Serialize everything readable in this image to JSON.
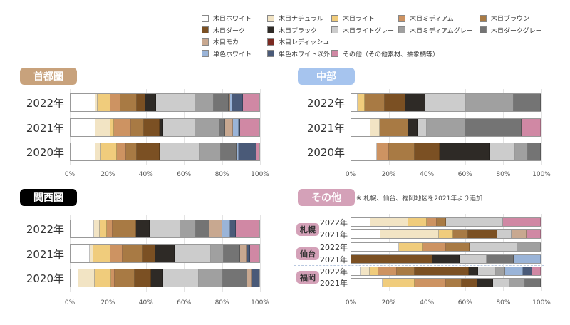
{
  "legend": [
    {
      "label": "木目ホワイト",
      "color": "#ffffff"
    },
    {
      "label": "木目ナチュラル",
      "color": "#f2e4c4"
    },
    {
      "label": "木目ライト",
      "color": "#f0cc7c"
    },
    {
      "label": "木目ミディアム",
      "color": "#cd9362"
    },
    {
      "label": "木目ブラウン",
      "color": "#a87a44"
    },
    {
      "label": "木目ダーク",
      "color": "#7b5023"
    },
    {
      "label": "木目ブラック",
      "color": "#2e2a26"
    },
    {
      "label": "木目ライトグレー",
      "color": "#cccccc"
    },
    {
      "label": "木目ミディアムグレー",
      "color": "#a0a0a0"
    },
    {
      "label": "木目ダークグレー",
      "color": "#747474"
    },
    {
      "label": "木目モカ",
      "color": "#c8a890"
    },
    {
      "label": "木目レディッシュ",
      "color": "#7b2a22"
    },
    {
      "label": "単色ホワイト",
      "color": "#9ab4d8"
    },
    {
      "label": "単色ホワイト以外",
      "color": "#4a5a78"
    },
    {
      "label": "その他（その他素材、抽象柄等）",
      "color": "#d088a4"
    }
  ],
  "chart_data": [
    {
      "type": "bar",
      "stacked": true,
      "orientation": "horizontal",
      "title": "首都圏",
      "badge_color": "#c8a27c",
      "xlim": [
        0,
        100
      ],
      "xticks": [
        "0%",
        "20%",
        "40%",
        "60%",
        "80%",
        "100%"
      ],
      "rows": [
        {
          "label": "2022年",
          "values": [
            13.2,
            1.1,
            6.9,
            5.1,
            8.9,
            4.4,
            5.6,
            20.8,
            9.8,
            7.9,
            1.0,
            0,
            0.9,
            5.9,
            8.5
          ]
        },
        {
          "label": "2021年",
          "values": [
            13.2,
            7.9,
            1.9,
            9.0,
            7.0,
            8.1,
            2.0,
            16.9,
            12.8,
            3.3,
            3.9,
            0,
            3.0,
            1.0,
            10.0
          ]
        },
        {
          "label": "2020年",
          "values": [
            13.4,
            2.8,
            8.3,
            5.1,
            5.5,
            12.3,
            0,
            21.6,
            10.7,
            8.3,
            0,
            0,
            1.4,
            9.5,
            1.3
          ]
        }
      ]
    },
    {
      "type": "bar",
      "stacked": true,
      "orientation": "horizontal",
      "title": "中部",
      "badge_color": "#a6c4ee",
      "xlim": [
        0,
        100
      ],
      "xticks": [
        "0%",
        "20%",
        "40%",
        "60%",
        "80%",
        "100%"
      ],
      "rows": [
        {
          "label": "2022年",
          "values": [
            3.5,
            0,
            3.8,
            0,
            10.5,
            10.9,
            10.6,
            21.3,
            25.0,
            14.4,
            0,
            0,
            0,
            0,
            0
          ]
        },
        {
          "label": "2021年",
          "values": [
            10,
            5,
            0,
            0,
            15,
            0,
            5,
            5,
            20,
            30,
            0,
            0,
            0,
            0,
            10
          ]
        },
        {
          "label": "2020年",
          "values": [
            13.4,
            0,
            0,
            6.6,
            13.3,
            13.3,
            26.9,
            13.1,
            6.6,
            6.8,
            0,
            0,
            0,
            0,
            0
          ]
        }
      ]
    },
    {
      "type": "bar",
      "stacked": true,
      "orientation": "horizontal",
      "title": "関西圏",
      "badge_color": "#000000",
      "xlim": [
        0,
        100
      ],
      "xticks": [
        "0%",
        "20%",
        "40%",
        "60%",
        "80%",
        "100%"
      ],
      "rows": [
        {
          "label": "2022年",
          "values": [
            12.3,
            3.0,
            4.1,
            2.8,
            12.5,
            0,
            7.1,
            16.5,
            8.3,
            7.1,
            6.6,
            0,
            4.3,
            3.0,
            12.4
          ]
        },
        {
          "label": "2021年",
          "values": [
            10.2,
            2.0,
            8.9,
            6.6,
            10.3,
            6.9,
            10.4,
            18.9,
            6.9,
            8.6,
            3.4,
            0,
            0,
            1.9,
            5.0
          ]
        },
        {
          "label": "2020年",
          "values": [
            4.3,
            8.5,
            8.6,
            1.9,
            10.8,
            8.4,
            6.5,
            19.0,
            12.8,
            12.9,
            2.0,
            0,
            0,
            4.3,
            0
          ]
        }
      ]
    },
    {
      "type": "bar",
      "stacked": true,
      "orientation": "horizontal",
      "title": "その他",
      "badge_color": "#d4a1b8",
      "note": "※ 札幌、仙台、福岡地区を2021年より追加",
      "xlim": [
        0,
        100
      ],
      "xticks": [
        "0%",
        "20%",
        "40%",
        "60%",
        "80%",
        "100%"
      ],
      "regions": [
        "札幌",
        "仙台",
        "福岡"
      ],
      "rows": [
        {
          "region": "札幌",
          "label": "2022年",
          "values": [
            10,
            20,
            10,
            5,
            5,
            0,
            0,
            30,
            0,
            0,
            0,
            0,
            0,
            0,
            20
          ]
        },
        {
          "region": "札幌",
          "label": "2021年",
          "values": [
            15.4,
            30.8,
            7.7,
            0,
            7.7,
            15.4,
            0,
            7.7,
            0,
            0,
            7.7,
            0,
            0,
            0,
            7.6
          ]
        },
        {
          "region": "仙台",
          "label": "2022年",
          "values": [
            25,
            0,
            12.5,
            12.5,
            12.5,
            0,
            0,
            25,
            12.5,
            0,
            0,
            0,
            0,
            0,
            0
          ]
        },
        {
          "region": "仙台",
          "label": "2021年",
          "values": [
            0,
            0,
            0,
            0,
            0,
            42.9,
            14.3,
            14.3,
            0,
            14.3,
            0,
            0,
            14.2,
            0,
            0
          ]
        },
        {
          "region": "福岡",
          "label": "2022年",
          "values": [
            4.8,
            4.8,
            4.8,
            9.5,
            9.5,
            28.6,
            4.8,
            9.5,
            4.8,
            0,
            0,
            0,
            9.5,
            4.8,
            4.6
          ]
        },
        {
          "region": "福岡",
          "label": "2021年",
          "values": [
            16.7,
            0,
            16.7,
            16.7,
            8.3,
            8.3,
            8.3,
            8.3,
            8.3,
            8.4,
            0,
            0,
            0,
            0,
            0
          ]
        }
      ]
    }
  ]
}
